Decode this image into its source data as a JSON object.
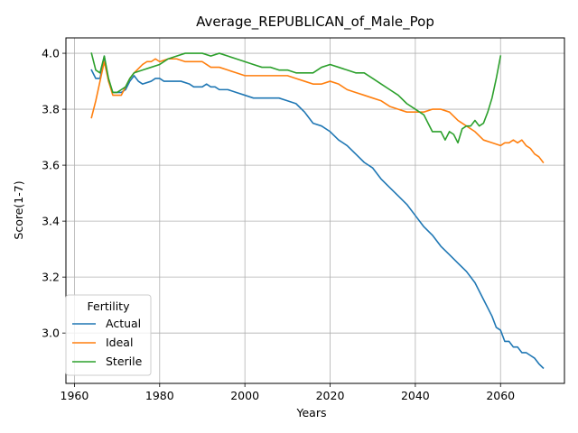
{
  "chart_data": {
    "type": "line",
    "title": "Average_REPUBLICAN_of_Male_Pop",
    "xlabel": "Years",
    "ylabel": "Score(1-7)",
    "xlim": [
      1958,
      2075
    ],
    "ylim": [
      2.82,
      4.055
    ],
    "xticks": [
      1960,
      1980,
      2000,
      2020,
      2040,
      2060
    ],
    "yticks": [
      3.0,
      3.2,
      3.4,
      3.6,
      3.8,
      4.0
    ],
    "xtick_labels": [
      "1960",
      "1980",
      "2000",
      "2020",
      "2040",
      "2060"
    ],
    "ytick_labels": [
      "3.0",
      "3.2",
      "3.4",
      "3.6",
      "3.8",
      "4.0"
    ],
    "grid": true,
    "legend": {
      "title": "Fertility",
      "placement": "lower-left"
    },
    "series": [
      {
        "name": "Actual",
        "color": "#1f77b4",
        "points": [
          [
            1964,
            3.94
          ],
          [
            1965,
            3.91
          ],
          [
            1966,
            3.91
          ],
          [
            1967,
            3.99
          ],
          [
            1968,
            3.9
          ],
          [
            1969,
            3.86
          ],
          [
            1970,
            3.86
          ],
          [
            1971,
            3.86
          ],
          [
            1972,
            3.87
          ],
          [
            1973,
            3.9
          ],
          [
            1974,
            3.92
          ],
          [
            1975,
            3.9
          ],
          [
            1976,
            3.89
          ],
          [
            1978,
            3.9
          ],
          [
            1979,
            3.91
          ],
          [
            1980,
            3.91
          ],
          [
            1981,
            3.9
          ],
          [
            1982,
            3.9
          ],
          [
            1985,
            3.9
          ],
          [
            1987,
            3.89
          ],
          [
            1988,
            3.88
          ],
          [
            1990,
            3.88
          ],
          [
            1991,
            3.89
          ],
          [
            1992,
            3.88
          ],
          [
            1993,
            3.88
          ],
          [
            1994,
            3.87
          ],
          [
            1996,
            3.87
          ],
          [
            1998,
            3.86
          ],
          [
            2000,
            3.85
          ],
          [
            2002,
            3.84
          ],
          [
            2004,
            3.84
          ],
          [
            2006,
            3.84
          ],
          [
            2008,
            3.84
          ],
          [
            2010,
            3.83
          ],
          [
            2012,
            3.82
          ],
          [
            2014,
            3.79
          ],
          [
            2016,
            3.75
          ],
          [
            2018,
            3.74
          ],
          [
            2020,
            3.72
          ],
          [
            2022,
            3.69
          ],
          [
            2024,
            3.67
          ],
          [
            2026,
            3.64
          ],
          [
            2028,
            3.61
          ],
          [
            2030,
            3.59
          ],
          [
            2032,
            3.55
          ],
          [
            2034,
            3.52
          ],
          [
            2036,
            3.49
          ],
          [
            2038,
            3.46
          ],
          [
            2040,
            3.42
          ],
          [
            2042,
            3.38
          ],
          [
            2044,
            3.35
          ],
          [
            2046,
            3.31
          ],
          [
            2048,
            3.28
          ],
          [
            2050,
            3.25
          ],
          [
            2052,
            3.22
          ],
          [
            2054,
            3.18
          ],
          [
            2056,
            3.12
          ],
          [
            2058,
            3.06
          ],
          [
            2059,
            3.02
          ],
          [
            2060,
            3.01
          ],
          [
            2061,
            2.97
          ],
          [
            2062,
            2.97
          ],
          [
            2063,
            2.95
          ],
          [
            2064,
            2.95
          ],
          [
            2065,
            2.93
          ],
          [
            2066,
            2.93
          ],
          [
            2067,
            2.92
          ],
          [
            2068,
            2.91
          ],
          [
            2069,
            2.89
          ],
          [
            2070,
            2.875
          ]
        ]
      },
      {
        "name": "Ideal",
        "color": "#ff7f0e",
        "points": [
          [
            1964,
            3.77
          ],
          [
            1965,
            3.83
          ],
          [
            1966,
            3.9
          ],
          [
            1967,
            3.97
          ],
          [
            1968,
            3.9
          ],
          [
            1969,
            3.85
          ],
          [
            1970,
            3.85
          ],
          [
            1971,
            3.85
          ],
          [
            1972,
            3.88
          ],
          [
            1973,
            3.91
          ],
          [
            1974,
            3.93
          ],
          [
            1976,
            3.96
          ],
          [
            1977,
            3.97
          ],
          [
            1978,
            3.97
          ],
          [
            1979,
            3.98
          ],
          [
            1980,
            3.97
          ],
          [
            1982,
            3.98
          ],
          [
            1984,
            3.98
          ],
          [
            1986,
            3.97
          ],
          [
            1988,
            3.97
          ],
          [
            1990,
            3.97
          ],
          [
            1991,
            3.96
          ],
          [
            1992,
            3.95
          ],
          [
            1994,
            3.95
          ],
          [
            1996,
            3.94
          ],
          [
            1998,
            3.93
          ],
          [
            2000,
            3.92
          ],
          [
            2002,
            3.92
          ],
          [
            2004,
            3.92
          ],
          [
            2006,
            3.92
          ],
          [
            2008,
            3.92
          ],
          [
            2010,
            3.92
          ],
          [
            2012,
            3.91
          ],
          [
            2014,
            3.9
          ],
          [
            2016,
            3.89
          ],
          [
            2018,
            3.89
          ],
          [
            2020,
            3.9
          ],
          [
            2022,
            3.89
          ],
          [
            2024,
            3.87
          ],
          [
            2026,
            3.86
          ],
          [
            2028,
            3.85
          ],
          [
            2030,
            3.84
          ],
          [
            2032,
            3.83
          ],
          [
            2034,
            3.81
          ],
          [
            2036,
            3.8
          ],
          [
            2038,
            3.79
          ],
          [
            2040,
            3.79
          ],
          [
            2042,
            3.79
          ],
          [
            2044,
            3.8
          ],
          [
            2046,
            3.8
          ],
          [
            2048,
            3.79
          ],
          [
            2050,
            3.76
          ],
          [
            2052,
            3.74
          ],
          [
            2054,
            3.72
          ],
          [
            2056,
            3.69
          ],
          [
            2058,
            3.68
          ],
          [
            2060,
            3.67
          ],
          [
            2061,
            3.68
          ],
          [
            2062,
            3.68
          ],
          [
            2063,
            3.69
          ],
          [
            2064,
            3.68
          ],
          [
            2065,
            3.69
          ],
          [
            2066,
            3.67
          ],
          [
            2067,
            3.66
          ],
          [
            2068,
            3.64
          ],
          [
            2069,
            3.63
          ],
          [
            2070,
            3.61
          ]
        ]
      },
      {
        "name": "Sterile",
        "color": "#2ca02c",
        "points": [
          [
            1964,
            4.0
          ],
          [
            1965,
            3.94
          ],
          [
            1966,
            3.93
          ],
          [
            1967,
            3.99
          ],
          [
            1968,
            3.91
          ],
          [
            1969,
            3.86
          ],
          [
            1970,
            3.86
          ],
          [
            1971,
            3.87
          ],
          [
            1972,
            3.88
          ],
          [
            1973,
            3.91
          ],
          [
            1974,
            3.93
          ],
          [
            1976,
            3.94
          ],
          [
            1978,
            3.95
          ],
          [
            1980,
            3.96
          ],
          [
            1982,
            3.98
          ],
          [
            1984,
            3.99
          ],
          [
            1986,
            4.0
          ],
          [
            1988,
            4.0
          ],
          [
            1990,
            4.0
          ],
          [
            1992,
            3.99
          ],
          [
            1994,
            4.0
          ],
          [
            1996,
            3.99
          ],
          [
            1998,
            3.98
          ],
          [
            2000,
            3.97
          ],
          [
            2002,
            3.96
          ],
          [
            2004,
            3.95
          ],
          [
            2006,
            3.95
          ],
          [
            2008,
            3.94
          ],
          [
            2010,
            3.94
          ],
          [
            2012,
            3.93
          ],
          [
            2014,
            3.93
          ],
          [
            2016,
            3.93
          ],
          [
            2018,
            3.95
          ],
          [
            2020,
            3.96
          ],
          [
            2022,
            3.95
          ],
          [
            2024,
            3.94
          ],
          [
            2026,
            3.93
          ],
          [
            2028,
            3.93
          ],
          [
            2030,
            3.91
          ],
          [
            2032,
            3.89
          ],
          [
            2034,
            3.87
          ],
          [
            2036,
            3.85
          ],
          [
            2038,
            3.82
          ],
          [
            2040,
            3.8
          ],
          [
            2042,
            3.78
          ],
          [
            2043,
            3.75
          ],
          [
            2044,
            3.72
          ],
          [
            2046,
            3.72
          ],
          [
            2047,
            3.69
          ],
          [
            2048,
            3.72
          ],
          [
            2049,
            3.71
          ],
          [
            2050,
            3.68
          ],
          [
            2051,
            3.73
          ],
          [
            2052,
            3.74
          ],
          [
            2053,
            3.74
          ],
          [
            2054,
            3.76
          ],
          [
            2055,
            3.74
          ],
          [
            2056,
            3.75
          ],
          [
            2057,
            3.79
          ],
          [
            2058,
            3.84
          ],
          [
            2059,
            3.91
          ],
          [
            2060,
            3.99
          ]
        ]
      }
    ]
  }
}
